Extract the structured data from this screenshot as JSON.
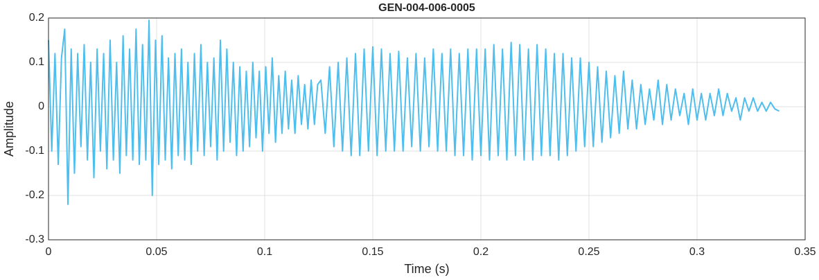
{
  "chart_data": {
    "type": "line",
    "title": "GEN-004-006-0005",
    "xlabel": "Time (s)",
    "ylabel": "Amplitude",
    "x": [
      0,
      0.0015,
      0.003,
      0.0045,
      0.006,
      0.0075,
      0.009,
      0.0105,
      0.012,
      0.0135,
      0.015,
      0.0165,
      0.018,
      0.0195,
      0.021,
      0.0225,
      0.024,
      0.0255,
      0.027,
      0.0285,
      0.03,
      0.0315,
      0.033,
      0.0345,
      0.036,
      0.0375,
      0.039,
      0.0405,
      0.042,
      0.0435,
      0.045,
      0.0465,
      0.048,
      0.0495,
      0.051,
      0.0525,
      0.054,
      0.0555,
      0.057,
      0.0585,
      0.06,
      0.0615,
      0.063,
      0.0645,
      0.066,
      0.0675,
      0.069,
      0.0705,
      0.072,
      0.0735,
      0.075,
      0.0765,
      0.078,
      0.0795,
      0.081,
      0.0825,
      0.084,
      0.0855,
      0.087,
      0.0885,
      0.09,
      0.0915,
      0.093,
      0.0945,
      0.096,
      0.0975,
      0.099,
      0.1005,
      0.102,
      0.1035,
      0.105,
      0.1065,
      0.108,
      0.1095,
      0.111,
      0.1125,
      0.114,
      0.1155,
      0.117,
      0.1185,
      0.12,
      0.1215,
      0.123,
      0.1245,
      0.126,
      0.128,
      0.13,
      0.132,
      0.134,
      0.136,
      0.138,
      0.14,
      0.142,
      0.144,
      0.146,
      0.148,
      0.15,
      0.152,
      0.154,
      0.156,
      0.158,
      0.16,
      0.162,
      0.164,
      0.166,
      0.168,
      0.17,
      0.172,
      0.174,
      0.176,
      0.178,
      0.18,
      0.182,
      0.184,
      0.186,
      0.188,
      0.19,
      0.192,
      0.194,
      0.196,
      0.198,
      0.2,
      0.202,
      0.204,
      0.206,
      0.208,
      0.21,
      0.212,
      0.214,
      0.216,
      0.218,
      0.22,
      0.222,
      0.224,
      0.226,
      0.228,
      0.23,
      0.232,
      0.234,
      0.236,
      0.238,
      0.24,
      0.242,
      0.244,
      0.246,
      0.248,
      0.25,
      0.252,
      0.254,
      0.256,
      0.258,
      0.26,
      0.262,
      0.264,
      0.266,
      0.268,
      0.27,
      0.272,
      0.274,
      0.276,
      0.278,
      0.28,
      0.282,
      0.284,
      0.286,
      0.288,
      0.29,
      0.292,
      0.294,
      0.296,
      0.298,
      0.3,
      0.302,
      0.304,
      0.306,
      0.308,
      0.31,
      0.312,
      0.314,
      0.316,
      0.318,
      0.32,
      0.322,
      0.324,
      0.326,
      0.328,
      0.33,
      0.332,
      0.334,
      0.336,
      0.338
    ],
    "values": [
      0.15,
      -0.1,
      0.12,
      -0.13,
      0.11,
      0.175,
      -0.22,
      0.13,
      -0.15,
      0.12,
      -0.09,
      0.14,
      -0.12,
      0.1,
      -0.16,
      0.13,
      -0.1,
      0.12,
      -0.14,
      0.15,
      -0.12,
      0.1,
      -0.15,
      0.16,
      -0.11,
      0.13,
      -0.12,
      0.175,
      -0.13,
      0.14,
      -0.12,
      0.195,
      -0.2,
      0.15,
      -0.13,
      0.16,
      -0.12,
      0.11,
      -0.14,
      0.12,
      -0.11,
      0.13,
      -0.12,
      0.1,
      -0.13,
      0.12,
      -0.1,
      0.14,
      -0.11,
      0.1,
      -0.09,
      0.11,
      -0.12,
      0.15,
      -0.1,
      0.13,
      -0.08,
      0.1,
      -0.11,
      0.09,
      -0.1,
      0.08,
      -0.09,
      0.1,
      -0.07,
      0.08,
      -0.1,
      0.09,
      -0.06,
      0.11,
      -0.08,
      0.07,
      -0.06,
      0.08,
      -0.05,
      0.06,
      -0.06,
      0.07,
      -0.04,
      0.05,
      -0.05,
      0.06,
      -0.04,
      0.05,
      0.06,
      -0.06,
      0.09,
      -0.09,
      0.1,
      -0.1,
      0.11,
      -0.11,
      0.12,
      -0.11,
      0.13,
      -0.1,
      0.135,
      -0.11,
      0.13,
      -0.1,
      0.12,
      -0.1,
      0.125,
      -0.1,
      0.11,
      -0.09,
      0.12,
      -0.1,
      0.11,
      -0.09,
      0.13,
      -0.1,
      0.12,
      -0.1,
      0.13,
      -0.11,
      0.12,
      -0.11,
      0.13,
      -0.12,
      0.13,
      -0.11,
      0.13,
      -0.12,
      0.14,
      -0.11,
      0.13,
      -0.12,
      0.145,
      -0.11,
      0.14,
      -0.12,
      0.13,
      -0.12,
      0.14,
      -0.11,
      0.13,
      -0.11,
      0.12,
      -0.12,
      0.12,
      -0.11,
      0.11,
      -0.1,
      0.11,
      -0.09,
      0.1,
      -0.09,
      0.09,
      -0.08,
      0.08,
      -0.07,
      0.07,
      -0.06,
      0.08,
      -0.05,
      0.06,
      -0.05,
      0.05,
      -0.04,
      0.04,
      -0.03,
      0.06,
      -0.04,
      0.05,
      -0.03,
      0.04,
      -0.02,
      0.03,
      -0.04,
      0.04,
      -0.03,
      0.03,
      -0.03,
      0.03,
      -0.02,
      0.04,
      -0.02,
      0.03,
      -0.01,
      0.02,
      -0.03,
      0.02,
      -0.01,
      0.02,
      -0.01,
      0.01,
      -0.01,
      0.01,
      -0.005,
      -0.01
    ],
    "color": "#4dbeee",
    "xlim": [
      0,
      0.35
    ],
    "ylim": [
      -0.3,
      0.2
    ],
    "xticks": [
      0,
      0.05,
      0.1,
      0.15,
      0.2,
      0.25,
      0.3,
      0.35
    ],
    "yticks": [
      -0.3,
      -0.2,
      -0.1,
      0,
      0.1,
      0.2
    ],
    "grid": true
  }
}
